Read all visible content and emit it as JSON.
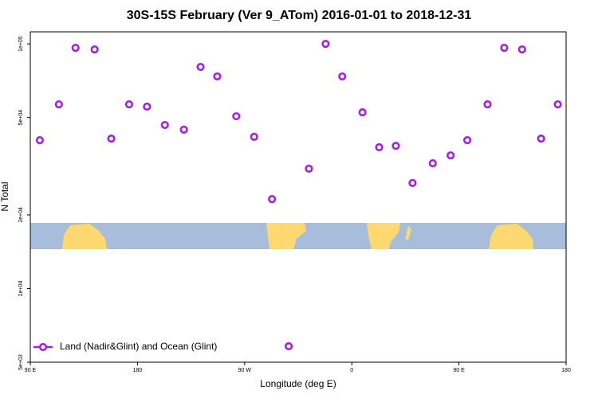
{
  "chart_data": {
    "type": "scatter",
    "title": "30S-15S February (Ver 9_ATom)   2016-01-01 to 2018-12-31",
    "x_label": "Longitude (deg E)",
    "y_label": "N Total",
    "log_y": true,
    "xlim": [
      90,
      540
    ],
    "xticks": [
      {
        "value": 90,
        "label": "90 E"
      },
      {
        "value": 180,
        "label": "180"
      },
      {
        "value": 270,
        "label": "90 W"
      },
      {
        "value": 360,
        "label": "0"
      },
      {
        "value": 450,
        "label": "90 E"
      },
      {
        "value": 540,
        "label": "180"
      }
    ],
    "ylim": [
      5000,
      112000
    ],
    "yticks": [
      {
        "value": 100000,
        "label": "1e+05"
      },
      {
        "value": 50000,
        "label": "5e+04"
      },
      {
        "value": 20000,
        "label": "2e+04"
      },
      {
        "value": 10000,
        "label": "1e+04"
      },
      {
        "value": 5000,
        "label": "5e+03"
      }
    ],
    "legend_position": "bottom-left",
    "series": [
      {
        "name": "Land (Nadir&Glint) and Ocean (Glint)",
        "color": "#a020f0",
        "x": [
          98,
          114,
          128,
          144,
          158,
          173,
          188,
          203,
          219,
          233,
          247,
          263,
          278,
          293,
          307,
          324,
          338,
          352,
          369,
          383,
          397,
          411,
          428,
          443,
          457,
          474,
          488,
          503,
          519,
          533
        ],
        "values": [
          40400,
          56600,
          96300,
          94900,
          41000,
          56600,
          55400,
          46600,
          44600,
          80500,
          73600,
          50600,
          41700,
          23200,
          5810,
          30900,
          100000,
          73600,
          52500,
          37800,
          38300,
          27000,
          32500,
          35000,
          40400,
          56600,
          96300,
          94900,
          41000,
          56600
        ]
      }
    ]
  }
}
